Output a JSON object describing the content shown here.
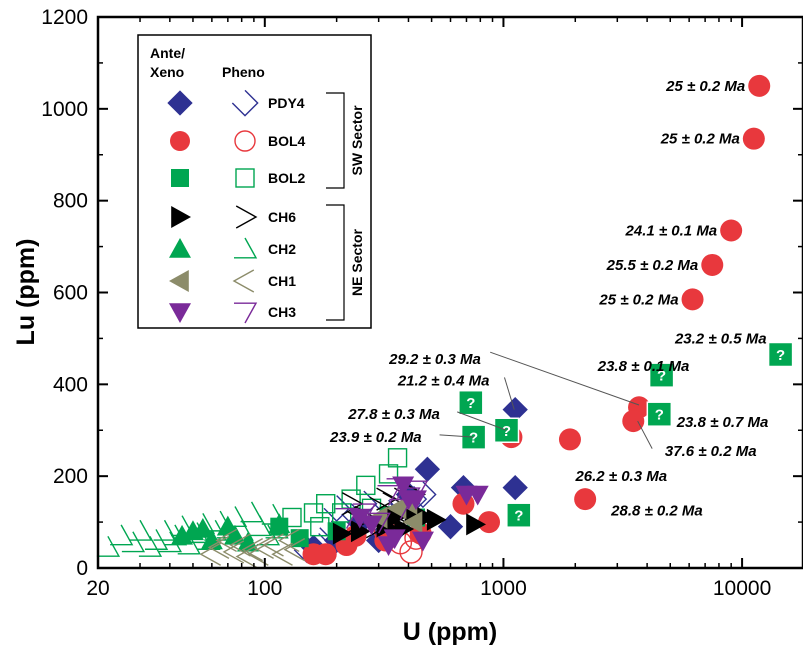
{
  "chart_data": {
    "type": "scatter",
    "xlabel": "U (ppm)",
    "ylabel": "Lu (ppm)",
    "xscale": "log",
    "xlim": [
      20,
      18000
    ],
    "ylim": [
      0,
      1200
    ],
    "xticks": [
      {
        "v": 20,
        "label": "20"
      },
      {
        "v": 100,
        "label": "100"
      },
      {
        "v": 1000,
        "label": "1000"
      },
      {
        "v": 10000,
        "label": "10000"
      }
    ],
    "yticks": [
      0,
      200,
      400,
      600,
      800,
      1000,
      1200
    ],
    "grid": false,
    "legend": {
      "placement": "top-left",
      "header_ante": "Ante/\nXeno",
      "header_pheno": "Pheno",
      "entries": [
        {
          "label": "PDY4",
          "marker": "diamond",
          "color": "#2e3192"
        },
        {
          "label": "BOL4",
          "marker": "circle",
          "color": "#e8383d"
        },
        {
          "label": "BOL2",
          "marker": "square",
          "color": "#00a651"
        },
        {
          "label": "CH6",
          "marker": "triangle-right",
          "color": "#000000"
        },
        {
          "label": "CH2",
          "marker": "triangle-up",
          "color": "#00a651"
        },
        {
          "label": "CH1",
          "marker": "triangle-left",
          "color": "#8c8c6a"
        },
        {
          "label": "CH3",
          "marker": "triangle-down",
          "color": "#7a2a99"
        }
      ],
      "sectors": [
        {
          "label": "SW Sector",
          "entries": [
            "PDY4",
            "BOL4",
            "BOL2"
          ]
        },
        {
          "label": "NE Sector",
          "entries": [
            "CH6",
            "CH2",
            "CH1",
            "CH3"
          ]
        }
      ]
    },
    "series": [
      {
        "name": "PDY4",
        "pheno": [
          [
            150,
            40
          ],
          [
            170,
            60
          ],
          [
            190,
            75
          ],
          [
            210,
            90
          ],
          [
            250,
            100
          ],
          [
            290,
            110
          ],
          [
            330,
            120
          ],
          [
            360,
            130
          ],
          [
            380,
            140
          ],
          [
            420,
            150
          ],
          [
            460,
            160
          ],
          [
            200,
            130
          ],
          [
            260,
            140
          ]
        ],
        "ante": [
          [
            1120,
            345
          ],
          [
            1120,
            175
          ],
          [
            480,
            215
          ],
          [
            680,
            175
          ],
          [
            250,
            100
          ],
          [
            300,
            60
          ],
          [
            200,
            60
          ],
          [
            160,
            45
          ],
          [
            400,
            160
          ],
          [
            600,
            90
          ],
          [
            350,
            80
          ]
        ]
      },
      {
        "name": "BOL4",
        "pheno": [
          [
            410,
            35
          ],
          [
            370,
            55
          ],
          [
            320,
            80
          ],
          [
            430,
            65
          ]
        ],
        "ante": [
          [
            11800,
            1050
          ],
          [
            11200,
            935
          ],
          [
            9000,
            735
          ],
          [
            7500,
            660
          ],
          [
            6200,
            585
          ],
          [
            3700,
            350
          ],
          [
            3500,
            320
          ],
          [
            1900,
            280
          ],
          [
            2200,
            150
          ],
          [
            1080,
            285
          ],
          [
            870,
            100
          ],
          [
            680,
            140
          ],
          [
            160,
            30
          ],
          [
            240,
            70
          ],
          [
            320,
            60
          ],
          [
            450,
            75
          ],
          [
            220,
            50
          ],
          [
            180,
            30
          ]
        ]
      },
      {
        "name": "BOL2",
        "pheno": [
          [
            360,
            240
          ],
          [
            330,
            205
          ],
          [
            265,
            180
          ],
          [
            230,
            150
          ],
          [
            180,
            140
          ],
          [
            130,
            110
          ],
          [
            160,
            120
          ],
          [
            210,
            120
          ],
          [
            170,
            90
          ],
          [
            280,
            130
          ]
        ],
        "ante": [
          [
            115,
            90
          ],
          [
            140,
            65
          ],
          [
            330,
            115
          ],
          [
            430,
            110
          ],
          [
            200,
            80
          ]
        ]
      },
      {
        "name": "CH6",
        "pheno": [
          [
            300,
            130
          ],
          [
            260,
            110
          ],
          [
            240,
            100
          ],
          [
            340,
            140
          ],
          [
            380,
            150
          ],
          [
            420,
            160
          ],
          [
            350,
            100
          ],
          [
            290,
            90
          ],
          [
            230,
            140
          ],
          [
            320,
            150
          ]
        ],
        "ante": [
          [
            760,
            95
          ],
          [
            420,
            120
          ],
          [
            470,
            110
          ],
          [
            520,
            105
          ],
          [
            250,
            80
          ],
          [
            320,
            90
          ],
          [
            380,
            85
          ],
          [
            350,
            110
          ],
          [
            210,
            75
          ]
        ]
      },
      {
        "name": "CH2",
        "pheno": [
          [
            22,
            45
          ],
          [
            25,
            70
          ],
          [
            28,
            55
          ],
          [
            30,
            80
          ],
          [
            33,
            45
          ],
          [
            35,
            60
          ],
          [
            38,
            80
          ],
          [
            40,
            55
          ],
          [
            42,
            70
          ],
          [
            45,
            90
          ],
          [
            48,
            50
          ],
          [
            52,
            75
          ],
          [
            55,
            95
          ],
          [
            58,
            60
          ],
          [
            62,
            80
          ],
          [
            65,
            100
          ],
          [
            70,
            85
          ],
          [
            75,
            110
          ],
          [
            80,
            80
          ],
          [
            88,
            120
          ],
          [
            95,
            90
          ],
          [
            103,
            70
          ],
          [
            108,
            115
          ],
          [
            112,
            85
          ]
        ],
        "ante": [
          [
            45,
            70
          ],
          [
            50,
            80
          ],
          [
            55,
            85
          ],
          [
            60,
            60
          ],
          [
            75,
            70
          ],
          [
            85,
            55
          ],
          [
            70,
            90
          ],
          [
            115,
            95
          ]
        ]
      },
      {
        "name": "CH1",
        "pheno": [
          [
            60,
            30
          ],
          [
            65,
            45
          ],
          [
            70,
            60
          ],
          [
            75,
            35
          ],
          [
            80,
            50
          ],
          [
            85,
            25
          ],
          [
            90,
            40
          ],
          [
            95,
            30
          ],
          [
            100,
            45
          ],
          [
            110,
            50
          ],
          [
            120,
            30
          ],
          [
            128,
            60
          ],
          [
            135,
            40
          ]
        ],
        "ante": [
          [
            360,
            130
          ],
          [
            400,
            140
          ],
          [
            300,
            110
          ],
          [
            420,
            100
          ]
        ]
      },
      {
        "name": "CH3",
        "pheno": [
          [
            370,
            130
          ],
          [
            400,
            155
          ],
          [
            430,
            170
          ],
          [
            330,
            160
          ],
          [
            300,
            100
          ],
          [
            260,
            120
          ],
          [
            220,
            110
          ],
          [
            360,
            175
          ]
        ],
        "ante": [
          [
            780,
            160
          ],
          [
            700,
            160
          ],
          [
            380,
            180
          ],
          [
            350,
            65
          ],
          [
            330,
            50
          ],
          [
            400,
            150
          ],
          [
            430,
            150
          ],
          [
            250,
            110
          ],
          [
            280,
            95
          ],
          [
            460,
            60
          ]
        ]
      }
    ],
    "unknown_points": [
      [
        730,
        360
      ],
      [
        1030,
        300
      ],
      [
        750,
        285
      ],
      [
        1160,
        115
      ],
      [
        4600,
        420
      ],
      [
        4500,
        335
      ],
      [
        14500,
        465
      ]
    ],
    "annotations": [
      {
        "text": "25 ± 0.2 Ma",
        "x": 11800,
        "y": 1050,
        "side": "left"
      },
      {
        "text": "25 ± 0.2 Ma",
        "x": 11200,
        "y": 935,
        "side": "left"
      },
      {
        "text": "24.1 ± 0.1 Ma",
        "x": 9000,
        "y": 735,
        "side": "left"
      },
      {
        "text": "25.5 ± 0.2 Ma",
        "x": 7500,
        "y": 660,
        "side": "left"
      },
      {
        "text": "25 ± 0.2 Ma",
        "x": 6200,
        "y": 585,
        "side": "left"
      },
      {
        "text": "23.2 ± 0.5 Ma",
        "x": 14500,
        "y": 500,
        "side": "left"
      },
      {
        "text": "23.8 ± 0.1 Ma",
        "x": 2170,
        "y": 440,
        "side": "right"
      },
      {
        "text": "29.2 ± 0.3 Ma",
        "x": 920,
        "y": 455,
        "side": "left"
      },
      {
        "text": "21.2 ± 0.4 Ma",
        "x": 1000,
        "y": 408,
        "side": "left"
      },
      {
        "text": "27.8 ± 0.3 Ma",
        "x": 620,
        "y": 335,
        "side": "left"
      },
      {
        "text": "23.9 ± 0.2 Ma",
        "x": 520,
        "y": 285,
        "side": "left"
      },
      {
        "text": "23.8 ± 0.7 Ma",
        "x": 4650,
        "y": 318,
        "side": "right"
      },
      {
        "text": "37.6 ± 0.2 Ma",
        "x": 4150,
        "y": 255,
        "side": "right"
      },
      {
        "text": "26.2 ± 0.3 Ma",
        "x": 1750,
        "y": 200,
        "side": "right"
      },
      {
        "text": "28.8 ± 0.2 Ma",
        "x": 2470,
        "y": 125,
        "side": "right"
      }
    ],
    "leader_lines": [
      [
        [
          880,
          470
        ],
        [
          3700,
          355
        ]
      ],
      [
        [
          1010,
          415
        ],
        [
          1110,
          345
        ]
      ],
      [
        [
          640,
          340
        ],
        [
          1030,
          300
        ]
      ],
      [
        [
          540,
          290
        ],
        [
          750,
          285
        ]
      ],
      [
        [
          3650,
          320
        ],
        [
          4200,
          260
        ]
      ]
    ]
  }
}
